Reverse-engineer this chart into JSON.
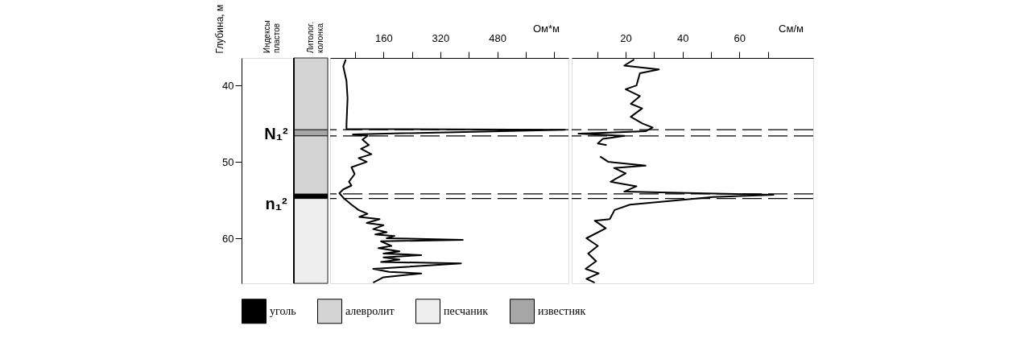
{
  "chart_data": [
    {
      "type": "bar",
      "categories": [
        null
      ],
      "ylabel": "Глубина, м",
      "ylim": [
        65.9,
        36.4
      ],
      "yticks": [
        40,
        50,
        60
      ],
      "legend": "bottom",
      "annotations": [
        "Индексы пластов",
        "Литолог. колонка",
        "N₁²",
        "n₁²"
      ],
      "series": [
        {
          "name": "уголь",
          "color": "#000000",
          "base": [
            54.2
          ],
          "values": [
            0.6
          ]
        },
        {
          "name": "алевролит",
          "color": "#d4d4d4",
          "base": [
            36.4
          ],
          "values": [
            9.4
          ]
        },
        {
          "name": "песчаник",
          "color": "#eeeeee",
          "base": [
            54.8
          ],
          "values": [
            11.1
          ]
        },
        {
          "name": "известняк",
          "color": "#a6a6a6",
          "base": [
            45.8
          ],
          "values": [
            0.8
          ]
        },
        {
          "color": "#d4d4d4",
          "base": [
            46.6
          ],
          "values": [
            7.6
          ]
        }
      ]
    },
    {
      "type": "line",
      "orientation": "horizontal",
      "xlabel": "Ом*м",
      "xlim": [
        10,
        680
      ],
      "xticks": [
        {
          "value": 80,
          "label": null
        },
        160,
        {
          "value": 240,
          "label": null
        },
        320,
        {
          "value": 400,
          "label": null
        },
        480,
        {
          "value": 560,
          "label": null
        },
        {
          "value": 640,
          "label": null
        }
      ],
      "ylim": [
        65.9,
        36.4
      ],
      "tick_labels": "x",
      "grid": false,
      "line_style": "solid",
      "ref_lines": [
        {
          "axis": "y",
          "value": 45.8,
          "line_style": "dashed"
        },
        {
          "axis": "y",
          "value": 46.6,
          "line_style": "dashed"
        },
        {
          "axis": "y",
          "value": 54.2,
          "line_style": "dashed"
        },
        {
          "axis": "y",
          "value": 54.8,
          "line_style": "dashed"
        }
      ],
      "series": [
        {
          "color": "#000000",
          "x": [
            36.6,
            37.5,
            39.4,
            41.7,
            45.1,
            45.7,
            45.8,
            46.4,
            46.6,
            47.1,
            47.8,
            48.3,
            49.0,
            49.5,
            50.0,
            50.7,
            51.6,
            52.6,
            53.1,
            53.6,
            54.1,
            54.7,
            55.6,
            56.3,
            56.8,
            57.2,
            57.5,
            58.0,
            58.3,
            58.8,
            59.2,
            59.5,
            59.7,
            60.0,
            60.2,
            60.4,
            61.0,
            61.3,
            61.7,
            62.0,
            62.2,
            62.5,
            62.8,
            63.1,
            63.3,
            64.0,
            64.4,
            64.6,
            65.1,
            65.8
          ],
          "values": [
            54,
            47,
            56,
            59,
            56,
            56,
            670,
            74,
            115,
            101,
            119,
            97,
            126,
            90,
            113,
            70,
            79,
            63,
            70,
            47,
            36,
            47,
            70,
            90,
            115,
            92,
            149,
            113,
            160,
            131,
            169,
            137,
            191,
            169,
            383,
            153,
            182,
            146,
            205,
            160,
            266,
            160,
            205,
            153,
            378,
            131,
            176,
            266,
            160,
            131
          ]
        }
      ]
    },
    {
      "type": "line",
      "orientation": "horizontal",
      "xlabel": "См/м",
      "xlim": [
        1,
        86
      ],
      "xticks": [
        {
          "value": 10,
          "label": null
        },
        20,
        {
          "value": 30,
          "label": null
        },
        40,
        {
          "value": 50,
          "label": null
        },
        60,
        {
          "value": 70,
          "label": null
        }
      ],
      "ylim": [
        65.9,
        36.4
      ],
      "tick_labels": "x",
      "grid": false,
      "line_style": "solid",
      "ref_lines": [
        {
          "axis": "y",
          "value": 45.8,
          "line_style": "dashed"
        },
        {
          "axis": "y",
          "value": 46.6,
          "line_style": "dashed"
        },
        {
          "axis": "y",
          "value": 54.2,
          "line_style": "dashed"
        },
        {
          "axis": "y",
          "value": 54.8,
          "line_style": "dashed"
        }
      ],
      "series": [
        {
          "color": "#000000",
          "x": [
            36.6,
            37.4,
            37.9,
            38.4,
            40.0,
            40.5,
            41.4,
            42.4,
            43.0,
            44.1,
            45.0,
            45.5,
            46.0,
            46.3,
            46.6,
            47.0,
            47.6,
            47.8,
            48.5,
            49.3,
            50.0,
            50.5,
            50.8,
            51.5,
            52.6,
            53.2,
            53.9,
            54.1,
            54.3,
            54.6,
            55.6,
            56.3,
            57.5,
            57.7,
            58.7,
            60.0,
            61.0,
            62.0,
            63.0,
            64.0,
            64.6,
            65.3,
            65.8
          ],
          "values": [
            23,
            19.5,
            31.7,
            25,
            23.8,
            20,
            25,
            21.8,
            25.8,
            21.8,
            26,
            29.5,
            27,
            3.4,
            19.5,
            11.9,
            10.2,
            13.3,
            null,
            11,
            13.9,
            27,
            15.9,
            20,
            14.7,
            23.8,
            19.5,
            45,
            72,
            50.7,
            21.5,
            16.1,
            14.4,
            9.1,
            13,
            6.2,
            10.2,
            6.8,
            9.6,
            5.9,
            10.5,
            6.2,
            9.1
          ]
        }
      ]
    }
  ]
}
